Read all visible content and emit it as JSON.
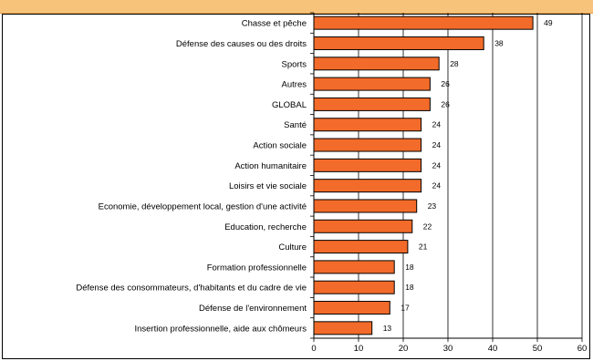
{
  "header": {
    "title": ""
  },
  "chart_data": {
    "type": "bar",
    "orientation": "horizontal",
    "categories": [
      "Chasse et pêche",
      "Défense des causes ou des droits",
      "Sports",
      "Autres",
      "GLOBAL",
      "Santé",
      "Action sociale",
      "Action humanitaire",
      "Loisirs et vie sociale",
      "Economie, développement local, gestion d'une activité",
      "Education, recherche",
      "Culture",
      "Formation professionnelle",
      "Défense des consommateurs, d'habitants et du cadre de vie",
      "Défense de l'environnement",
      "Insertion professionnelle, aide aux chômeurs"
    ],
    "values": [
      49,
      38,
      28,
      26,
      26,
      24,
      24,
      24,
      24,
      23,
      22,
      21,
      18,
      18,
      17,
      13
    ],
    "xlim": [
      0,
      60
    ],
    "xticks": [
      0,
      10,
      20,
      30,
      40,
      50,
      60
    ],
    "grid": "vertical",
    "bar_color": "#f26b2a",
    "title": "",
    "xlabel": "",
    "ylabel": ""
  }
}
